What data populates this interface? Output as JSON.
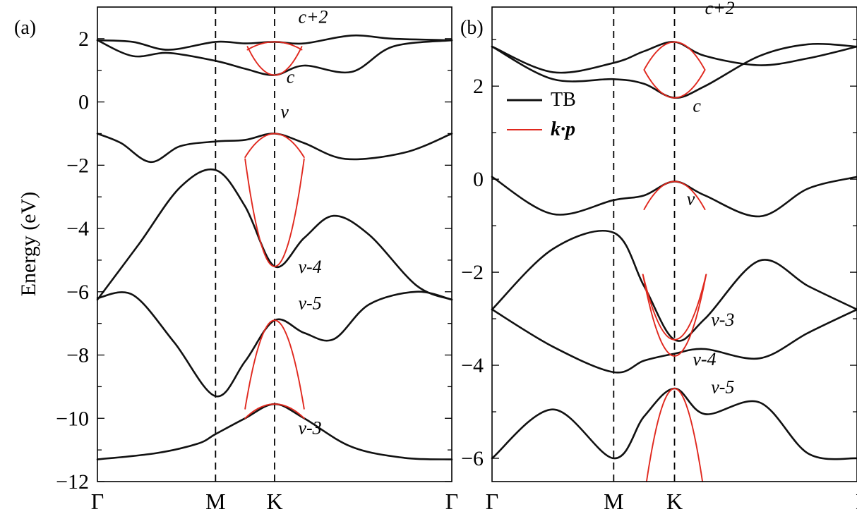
{
  "figure": {
    "ylabel": "Energy (eV)",
    "legend": [
      {
        "label": "TB",
        "color": "#111111"
      },
      {
        "label": "k·p",
        "color": "#e0281e"
      }
    ]
  },
  "chart_data": [
    {
      "type": "line",
      "panel": "(a)",
      "ylabel": "Energy (eV)",
      "ylim": [
        -12,
        3
      ],
      "yticks": [
        2,
        0,
        -2,
        -4,
        -6,
        -8,
        -10,
        -12
      ],
      "ytick_labels": [
        "2",
        "0",
        "−2",
        "−4",
        "−6",
        "−8",
        "−10",
        "−12"
      ],
      "x_labels": [
        "Γ",
        "M",
        "K",
        "Γ"
      ],
      "x_path": [
        0,
        1,
        1.5,
        3
      ],
      "series": [
        {
          "kind": "TB",
          "points": [
            [
              0,
              1.95
            ],
            [
              0.3,
              1.45
            ],
            [
              0.6,
              1.55
            ],
            [
              1,
              1.3
            ],
            [
              1.25,
              1.05
            ],
            [
              1.5,
              0.85
            ],
            [
              1.75,
              1.15
            ],
            [
              2.15,
              0.95
            ],
            [
              2.5,
              1.75
            ],
            [
              3,
              1.95
            ]
          ]
        },
        {
          "kind": "TB",
          "points": [
            [
              0,
              1.95
            ],
            [
              0.3,
              1.9
            ],
            [
              0.6,
              1.65
            ],
            [
              1,
              1.9
            ],
            [
              1.25,
              1.85
            ],
            [
              1.5,
              1.9
            ],
            [
              1.75,
              1.85
            ],
            [
              2.15,
              2.1
            ],
            [
              2.5,
              2.0
            ],
            [
              3,
              1.95
            ]
          ]
        },
        {
          "kind": "TB",
          "points": [
            [
              0,
              -1.0
            ],
            [
              0.2,
              -1.3
            ],
            [
              0.45,
              -1.9
            ],
            [
              0.7,
              -1.4
            ],
            [
              1,
              -1.25
            ],
            [
              1.25,
              -1.2
            ],
            [
              1.5,
              -1.0
            ],
            [
              1.75,
              -1.3
            ],
            [
              2.1,
              -1.8
            ],
            [
              2.6,
              -1.6
            ],
            [
              3,
              -1.0
            ]
          ]
        },
        {
          "kind": "TB",
          "points": [
            [
              0,
              -6.25
            ],
            [
              0.35,
              -4.5
            ],
            [
              0.7,
              -2.7
            ],
            [
              1,
              -2.15
            ],
            [
              1.25,
              -3.3
            ],
            [
              1.5,
              -5.2
            ],
            [
              1.75,
              -4.3
            ],
            [
              2.0,
              -3.6
            ],
            [
              2.3,
              -4.2
            ],
            [
              2.7,
              -5.8
            ],
            [
              3,
              -6.25
            ]
          ]
        },
        {
          "kind": "TB",
          "points": [
            [
              0,
              -6.2
            ],
            [
              0.3,
              -6.1
            ],
            [
              0.65,
              -7.6
            ],
            [
              1,
              -9.3
            ],
            [
              1.25,
              -8.2
            ],
            [
              1.5,
              -6.9
            ],
            [
              1.75,
              -7.3
            ],
            [
              2.0,
              -7.5
            ],
            [
              2.3,
              -6.4
            ],
            [
              2.7,
              -6.0
            ],
            [
              3,
              -6.25
            ]
          ]
        },
        {
          "kind": "TB",
          "points": [
            [
              0,
              -11.3
            ],
            [
              0.5,
              -11.1
            ],
            [
              0.85,
              -10.8
            ],
            [
              1,
              -10.5
            ],
            [
              1.25,
              -10.0
            ],
            [
              1.5,
              -9.55
            ],
            [
              1.75,
              -10.0
            ],
            [
              2.15,
              -10.9
            ],
            [
              2.6,
              -11.25
            ],
            [
              3,
              -11.3
            ]
          ]
        },
        {
          "kind": "k·p",
          "center": 1.5,
          "halfwidth": 0.23,
          "y0": 1.9,
          "ycurv": -0.25
        },
        {
          "kind": "k·p",
          "center": 1.5,
          "halfwidth": 0.23,
          "y0": 0.85,
          "ycurv": 0.9
        },
        {
          "kind": "k·p",
          "center": 1.5,
          "halfwidth": 0.25,
          "y0": -1.0,
          "ycurv": -0.75
        },
        {
          "kind": "k·p",
          "center": 1.5,
          "halfwidth": 0.25,
          "y0": -5.2,
          "ycurv": 3.4
        },
        {
          "kind": "k·p",
          "center": 1.5,
          "halfwidth": 0.25,
          "y0": -6.9,
          "ycurv": -2.8
        },
        {
          "kind": "k·p",
          "center": 1.5,
          "halfwidth": 0.25,
          "y0": -9.55,
          "ycurv": -0.45
        }
      ],
      "band_labels": [
        {
          "text": "c+2",
          "x": 1.7,
          "y": 2.5
        },
        {
          "text": "c",
          "x": 1.6,
          "y": 0.6
        },
        {
          "text": "v",
          "x": 1.55,
          "y": -0.5
        },
        {
          "text": "v-4",
          "x": 1.7,
          "y": -5.4
        },
        {
          "text": "v-5",
          "x": 1.7,
          "y": -6.55
        },
        {
          "text": "v-3",
          "x": 1.7,
          "y": -10.5
        }
      ]
    },
    {
      "type": "line",
      "panel": "(b)",
      "ylabel": "",
      "ylim": [
        -6.5,
        3.7
      ],
      "yticks": [
        2,
        0,
        -2,
        -4,
        -6
      ],
      "ytick_labels": [
        "2",
        "0",
        "−2",
        "−4",
        "−6"
      ],
      "x_labels": [
        "Γ",
        "M",
        "K",
        "Γ"
      ],
      "x_path": [
        0,
        1,
        1.5,
        3
      ],
      "series": [
        {
          "kind": "TB",
          "points": [
            [
              0,
              2.85
            ],
            [
              0.5,
              2.3
            ],
            [
              1,
              2.5
            ],
            [
              1.25,
              2.75
            ],
            [
              1.5,
              2.95
            ],
            [
              1.75,
              2.65
            ],
            [
              2.2,
              2.45
            ],
            [
              2.6,
              2.6
            ],
            [
              3,
              2.85
            ]
          ]
        },
        {
          "kind": "TB",
          "points": [
            [
              0,
              2.85
            ],
            [
              0.5,
              2.15
            ],
            [
              1,
              2.15
            ],
            [
              1.25,
              2.05
            ],
            [
              1.5,
              1.75
            ],
            [
              1.75,
              2.0
            ],
            [
              2.2,
              2.65
            ],
            [
              2.6,
              2.9
            ],
            [
              3,
              2.85
            ]
          ]
        },
        {
          "kind": "TB",
          "points": [
            [
              0,
              0.05
            ],
            [
              0.5,
              -0.75
            ],
            [
              1,
              -0.45
            ],
            [
              1.25,
              -0.35
            ],
            [
              1.5,
              -0.05
            ],
            [
              1.75,
              -0.35
            ],
            [
              2.2,
              -0.8
            ],
            [
              2.6,
              -0.2
            ],
            [
              3,
              0.05
            ]
          ]
        },
        {
          "kind": "TB",
          "points": [
            [
              0,
              -2.8
            ],
            [
              0.5,
              -1.5
            ],
            [
              1,
              -1.15
            ],
            [
              1.25,
              -2.3
            ],
            [
              1.5,
              -3.45
            ],
            [
              1.75,
              -3.0
            ],
            [
              2.2,
              -1.75
            ],
            [
              2.6,
              -2.3
            ],
            [
              3,
              -2.8
            ]
          ]
        },
        {
          "kind": "TB",
          "points": [
            [
              0,
              -2.8
            ],
            [
              0.5,
              -3.6
            ],
            [
              1,
              -4.15
            ],
            [
              1.25,
              -3.9
            ],
            [
              1.5,
              -3.75
            ],
            [
              1.75,
              -3.65
            ],
            [
              2.2,
              -3.85
            ],
            [
              2.6,
              -3.3
            ],
            [
              3,
              -2.8
            ]
          ]
        },
        {
          "kind": "TB",
          "points": [
            [
              0,
              -6.0
            ],
            [
              0.5,
              -4.95
            ],
            [
              1,
              -6.0
            ],
            [
              1.25,
              -5.1
            ],
            [
              1.5,
              -4.5
            ],
            [
              1.75,
              -5.05
            ],
            [
              2.2,
              -4.8
            ],
            [
              2.6,
              -5.9
            ],
            [
              3,
              -6.0
            ]
          ]
        },
        {
          "kind": "k·p",
          "center": 1.5,
          "halfwidth": 0.25,
          "y0": 2.95,
          "ycurv": -0.6
        },
        {
          "kind": "k·p",
          "center": 1.5,
          "halfwidth": 0.25,
          "y0": 1.75,
          "ycurv": 0.6
        },
        {
          "kind": "k·p",
          "center": 1.5,
          "halfwidth": 0.25,
          "y0": -0.05,
          "ycurv": -0.6
        },
        {
          "kind": "k·p",
          "center": 1.5,
          "halfwidth": 0.26,
          "y0": -3.45,
          "ycurv": 1.4
        },
        {
          "kind": "k·p",
          "center": 1.5,
          "halfwidth": 0.26,
          "y0": -3.8,
          "ycurv": 1.75
        },
        {
          "kind": "k·p",
          "center": 1.5,
          "halfwidth": 0.23,
          "y0": -4.5,
          "ycurv": -2.0
        }
      ],
      "band_labels": [
        {
          "text": "c+2",
          "x": 1.75,
          "y": 3.55
        },
        {
          "text": "c",
          "x": 1.65,
          "y": 1.45
        },
        {
          "text": "v",
          "x": 1.6,
          "y": -0.55
        },
        {
          "text": "v-3",
          "x": 1.8,
          "y": -3.15
        },
        {
          "text": "v-4",
          "x": 1.65,
          "y": -4.0
        },
        {
          "text": "v-5",
          "x": 1.8,
          "y": -4.6
        }
      ]
    }
  ]
}
